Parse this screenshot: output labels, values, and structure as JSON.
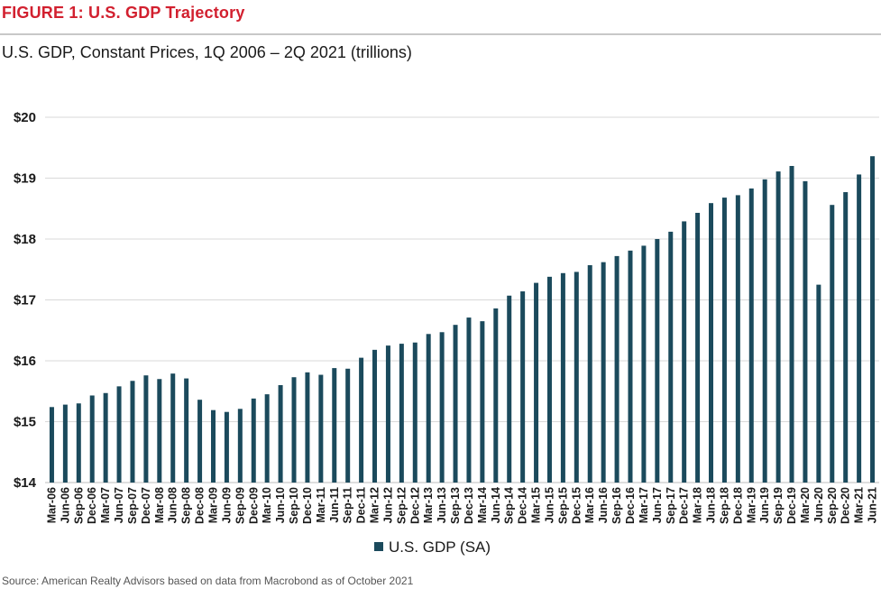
{
  "header": {
    "figure_title": "FIGURE 1: U.S. GDP Trajectory",
    "subtitle": "U.S. GDP, Constant Prices, 1Q 2006 – 2Q 2021 (trillions)"
  },
  "footer": {
    "source": "Source: American Realty Advisors based on data from Macrobond as of October 2021"
  },
  "colors": {
    "bar": "#1b4a5c",
    "title": "#d2202f",
    "grid": "#d9d9d9"
  },
  "chart_data": {
    "type": "bar",
    "title": "",
    "xlabel": "",
    "ylabel": "",
    "ylim": [
      14,
      20
    ],
    "y_ticks": [
      14,
      15,
      16,
      17,
      18,
      19,
      20
    ],
    "y_tick_labels": [
      "$14",
      "$15",
      "$16",
      "$17",
      "$18",
      "$19",
      "$20"
    ],
    "grid": true,
    "legend_position": "bottom-center",
    "categories": [
      "Mar-06",
      "Jun-06",
      "Sep-06",
      "Dec-06",
      "Mar-07",
      "Jun-07",
      "Sep-07",
      "Dec-07",
      "Mar-08",
      "Jun-08",
      "Sep-08",
      "Dec-08",
      "Mar-09",
      "Jun-09",
      "Sep-09",
      "Dec-09",
      "Mar-10",
      "Jun-10",
      "Sep-10",
      "Dec-10",
      "Mar-11",
      "Jun-11",
      "Sep-11",
      "Dec-11",
      "Mar-12",
      "Jun-12",
      "Sep-12",
      "Dec-12",
      "Mar-13",
      "Jun-13",
      "Sep-13",
      "Dec-13",
      "Mar-14",
      "Jun-14",
      "Sep-14",
      "Dec-14",
      "Mar-15",
      "Jun-15",
      "Sep-15",
      "Dec-15",
      "Mar-16",
      "Jun-16",
      "Sep-16",
      "Dec-16",
      "Mar-17",
      "Jun-17",
      "Sep-17",
      "Dec-17",
      "Mar-18",
      "Jun-18",
      "Sep-18",
      "Dec-18",
      "Mar-19",
      "Jun-19",
      "Sep-19",
      "Dec-19",
      "Mar-20",
      "Jun-20",
      "Sep-20",
      "Dec-20",
      "Mar-21",
      "Jun-21"
    ],
    "series": [
      {
        "name": "U.S. GDP (SA)",
        "values": [
          15.24,
          15.28,
          15.3,
          15.43,
          15.47,
          15.58,
          15.67,
          15.76,
          15.7,
          15.79,
          15.71,
          15.36,
          15.19,
          15.16,
          15.21,
          15.38,
          15.45,
          15.6,
          15.73,
          15.81,
          15.77,
          15.88,
          15.87,
          16.05,
          16.18,
          16.25,
          16.28,
          16.3,
          16.44,
          16.47,
          16.59,
          16.71,
          16.65,
          16.86,
          17.07,
          17.14,
          17.28,
          17.38,
          17.44,
          17.46,
          17.57,
          17.62,
          17.72,
          17.81,
          17.89,
          18.0,
          18.12,
          18.29,
          18.43,
          18.59,
          18.68,
          18.72,
          18.83,
          18.98,
          19.11,
          19.2,
          18.95,
          17.25,
          18.56,
          18.77,
          19.06,
          19.36
        ]
      }
    ]
  }
}
